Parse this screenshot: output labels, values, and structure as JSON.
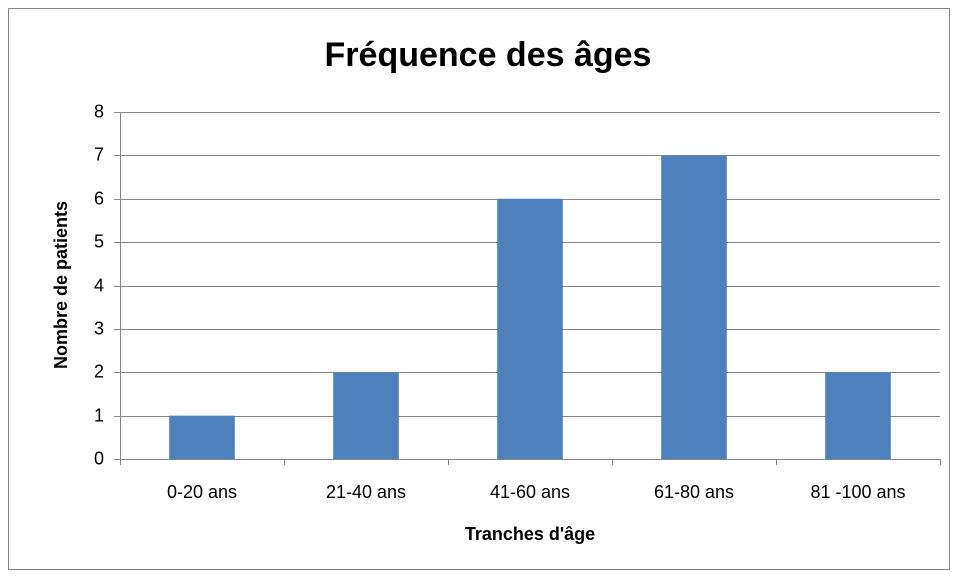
{
  "chart_data": {
    "type": "bar",
    "title": "Fréquence des âges",
    "x_label": "Tranches d'âge",
    "y_label": "Nombre de patients",
    "categories": [
      "0-20 ans",
      "21-40 ans",
      "41-60 ans",
      "61-80 ans",
      "81 -100 ans"
    ],
    "values": [
      1,
      2,
      6,
      7,
      2
    ],
    "color": "#4f81bd",
    "ylim": [
      0,
      8
    ],
    "yticks": [
      0,
      1,
      2,
      3,
      4,
      5,
      6,
      7,
      8
    ],
    "grid": true
  }
}
